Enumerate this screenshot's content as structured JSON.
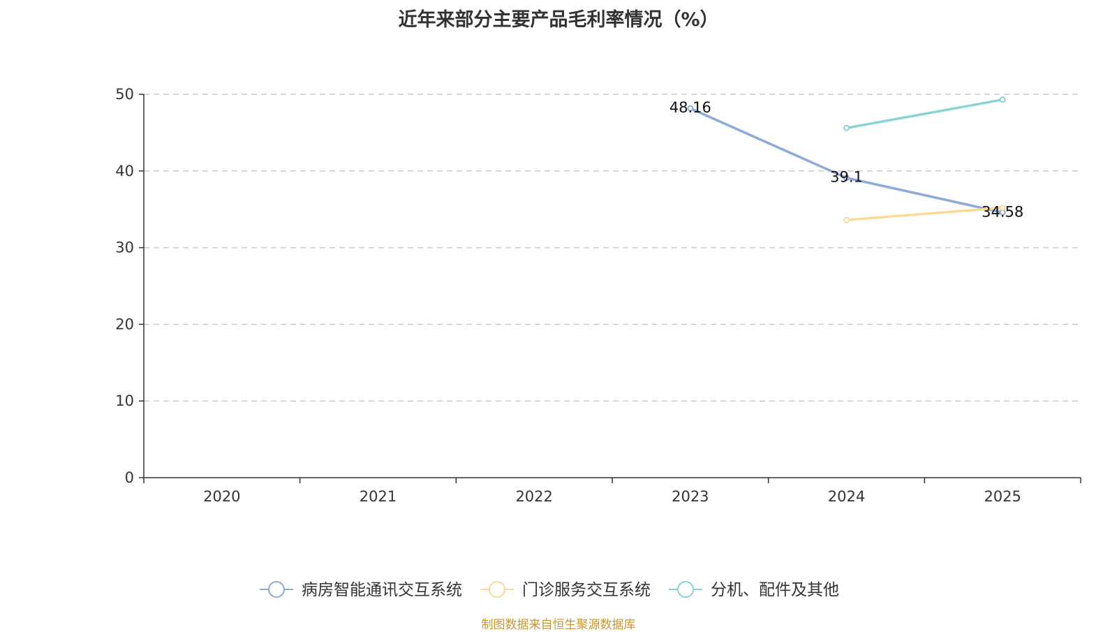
{
  "chart_data": {
    "type": "line",
    "title": "近年来部分主要产品毛利率情况（%）",
    "xlabel": "",
    "ylabel": "",
    "categories": [
      "2020",
      "2021",
      "2022",
      "2023",
      "2024",
      "2025"
    ],
    "ylim": [
      0,
      50
    ],
    "yticks": [
      "0",
      "10",
      "20",
      "30",
      "40",
      "50"
    ],
    "grid": "horizontal-dashed",
    "legend_position": "bottom-center",
    "series": [
      {
        "name": "病房智能通讯交互系统",
        "color": "#8eaadb",
        "values": [
          null,
          null,
          null,
          48.16,
          39.1,
          34.58
        ],
        "labels": [
          null,
          null,
          null,
          "48.16",
          "39.1",
          "34.58"
        ]
      },
      {
        "name": "门诊服务交互系统",
        "color": "#fcd994",
        "values": [
          null,
          null,
          null,
          null,
          33.6,
          35.2
        ],
        "labels": [
          null,
          null,
          null,
          null,
          null,
          null
        ]
      },
      {
        "name": "分机、配件及其他",
        "color": "#87d3d6",
        "values": [
          null,
          null,
          null,
          null,
          45.6,
          49.3
        ],
        "labels": [
          null,
          null,
          null,
          null,
          null,
          null
        ]
      }
    ]
  },
  "source_text": "制图数据来自恒生聚源数据库",
  "source_color": "#c7962f",
  "axis_color": "#333333",
  "grid_color": "#cccccc"
}
